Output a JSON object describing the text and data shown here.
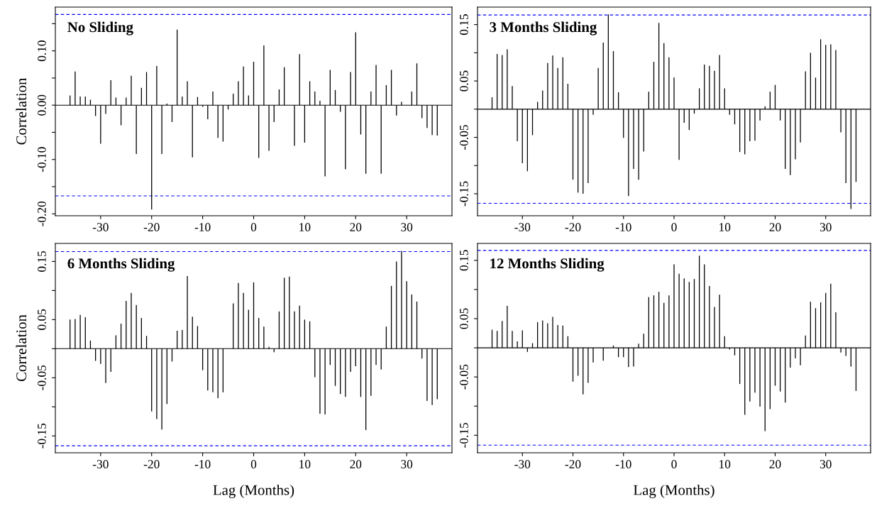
{
  "chart_data": [
    {
      "type": "bar",
      "title": "No Sliding",
      "ylabel": "Correlation",
      "color": "#000000",
      "x": [
        -36,
        -35,
        -34,
        -33,
        -32,
        -31,
        -30,
        -29,
        -28,
        -27,
        -26,
        -25,
        -24,
        -23,
        -22,
        -21,
        -20,
        -19,
        -18,
        -17,
        -16,
        -15,
        -14,
        -13,
        -12,
        -11,
        -10,
        -9,
        -8,
        -7,
        -6,
        -5,
        -4,
        -3,
        -2,
        -1,
        0,
        1,
        2,
        3,
        4,
        5,
        6,
        7,
        8,
        9,
        10,
        11,
        12,
        13,
        14,
        15,
        16,
        17,
        18,
        19,
        20,
        21,
        22,
        23,
        24,
        25,
        26,
        27,
        28,
        29,
        30,
        31,
        32,
        33,
        34,
        35,
        36
      ],
      "values": [
        0.018,
        0.062,
        0.016,
        0.016,
        0.01,
        -0.02,
        -0.071,
        -0.016,
        0.046,
        0.014,
        -0.037,
        0.014,
        0.054,
        -0.09,
        0.032,
        0.061,
        -0.192,
        0.072,
        -0.09,
        0.003,
        -0.031,
        0.139,
        0.016,
        0.044,
        -0.096,
        0.015,
        -0.003,
        -0.026,
        0.025,
        -0.06,
        -0.067,
        -0.008,
        0.021,
        0.044,
        0.071,
        0.018,
        0.08,
        -0.097,
        0.11,
        -0.084,
        -0.031,
        0.029,
        0.07,
        0.0,
        -0.075,
        0.094,
        -0.069,
        0.044,
        0.025,
        0.008,
        -0.131,
        0.065,
        0.028,
        -0.012,
        -0.118,
        0.061,
        0.134,
        -0.054,
        -0.126,
        0.025,
        0.074,
        -0.126,
        0.037,
        0.065,
        -0.019,
        0.006,
        0.0,
        0.025,
        0.077,
        -0.024,
        -0.042,
        -0.055,
        -0.056
      ],
      "xlim": [
        -38.88,
        38.88
      ],
      "xticks": [
        -30,
        -20,
        -10,
        0,
        10,
        20,
        30
      ],
      "ylim": [
        -0.2035,
        0.1805
      ],
      "yticks": [
        {
          "value": 0.15,
          "label": null
        },
        {
          "value": 0.1,
          "label": "0.10"
        },
        {
          "value": 0.05,
          "label": null
        },
        {
          "value": 0.0,
          "label": "0.00"
        },
        {
          "value": -0.05,
          "label": null
        },
        {
          "value": -0.1,
          "label": "-0.10"
        },
        {
          "value": -0.15,
          "label": null
        },
        {
          "value": -0.2,
          "label": "-0.20"
        }
      ],
      "ref_lines": [
        {
          "axis": "y",
          "value": 0.167,
          "color": "#0000ff",
          "line_style": "dashed"
        },
        {
          "axis": "y",
          "value": -0.167,
          "color": "#0000ff",
          "line_style": "dashed"
        },
        {
          "axis": "y",
          "value": 0.0,
          "color": "#000000",
          "line_style": "solid"
        }
      ]
    },
    {
      "type": "bar",
      "title": "3 Months Sliding",
      "color": "#000000",
      "x": [
        -36,
        -35,
        -34,
        -33,
        -32,
        -31,
        -30,
        -29,
        -28,
        -27,
        -26,
        -25,
        -24,
        -23,
        -22,
        -21,
        -20,
        -19,
        -18,
        -17,
        -16,
        -15,
        -14,
        -13,
        -12,
        -11,
        -10,
        -9,
        -8,
        -7,
        -6,
        -5,
        -4,
        -3,
        -2,
        -1,
        0,
        1,
        2,
        3,
        4,
        5,
        6,
        7,
        8,
        9,
        10,
        11,
        12,
        13,
        14,
        15,
        16,
        17,
        18,
        19,
        20,
        21,
        22,
        23,
        24,
        25,
        26,
        27,
        28,
        29,
        30,
        31,
        32,
        33,
        34,
        35,
        36
      ],
      "values": [
        0.021,
        0.098,
        0.096,
        0.106,
        0.041,
        -0.057,
        -0.096,
        -0.11,
        -0.046,
        0.013,
        0.033,
        0.082,
        0.095,
        0.073,
        0.092,
        0.045,
        -0.125,
        -0.148,
        -0.15,
        -0.131,
        -0.01,
        0.073,
        0.118,
        0.168,
        0.103,
        0.03,
        -0.051,
        -0.154,
        -0.106,
        -0.125,
        -0.075,
        0.031,
        0.084,
        0.153,
        0.117,
        0.092,
        0.056,
        -0.09,
        -0.024,
        -0.037,
        -0.008,
        0.037,
        0.079,
        0.077,
        0.068,
        0.096,
        0.037,
        -0.01,
        -0.027,
        -0.076,
        -0.08,
        -0.057,
        -0.056,
        -0.02,
        0.005,
        0.031,
        0.043,
        -0.02,
        -0.106,
        -0.117,
        -0.089,
        -0.059,
        0.067,
        0.1,
        0.056,
        0.124,
        0.114,
        0.115,
        0.105,
        -0.041,
        -0.131,
        -0.177,
        -0.129
      ],
      "xlim": [
        -38.88,
        38.88
      ],
      "xticks": [
        -30,
        -20,
        -10,
        0,
        10,
        20,
        30
      ],
      "ylim": [
        -0.189,
        0.181
      ],
      "yticks": [
        {
          "value": 0.15,
          "label": "0.15"
        },
        {
          "value": 0.1,
          "label": null
        },
        {
          "value": 0.05,
          "label": "0.05"
        },
        {
          "value": 0.0,
          "label": null
        },
        {
          "value": -0.05,
          "label": "-0.05"
        },
        {
          "value": -0.1,
          "label": null
        },
        {
          "value": -0.15,
          "label": "-0.15"
        }
      ],
      "ref_lines": [
        {
          "axis": "y",
          "value": 0.167,
          "color": "#0000ff",
          "line_style": "dashed"
        },
        {
          "axis": "y",
          "value": -0.167,
          "color": "#0000ff",
          "line_style": "dashed"
        },
        {
          "axis": "y",
          "value": 0.0,
          "color": "#000000",
          "line_style": "solid"
        }
      ]
    },
    {
      "type": "bar",
      "title": "6 Months Sliding",
      "ylabel": "Correlation",
      "xlabel": "Lag (Months)",
      "color": "#000000",
      "x": [
        -36,
        -35,
        -34,
        -33,
        -32,
        -31,
        -30,
        -29,
        -28,
        -27,
        -26,
        -25,
        -24,
        -23,
        -22,
        -21,
        -20,
        -19,
        -18,
        -17,
        -16,
        -15,
        -14,
        -13,
        -12,
        -11,
        -10,
        -9,
        -8,
        -7,
        -6,
        -5,
        -4,
        -3,
        -2,
        -1,
        0,
        1,
        2,
        3,
        4,
        5,
        6,
        7,
        8,
        9,
        10,
        11,
        12,
        13,
        14,
        15,
        16,
        17,
        18,
        19,
        20,
        21,
        22,
        23,
        24,
        25,
        26,
        27,
        28,
        29,
        30,
        31,
        32,
        33,
        34,
        35,
        36
      ],
      "values": [
        0.05,
        0.051,
        0.058,
        0.054,
        0.014,
        -0.021,
        -0.026,
        -0.059,
        -0.04,
        0.023,
        0.043,
        0.082,
        0.096,
        0.075,
        0.053,
        0.022,
        -0.108,
        -0.121,
        -0.139,
        -0.095,
        -0.022,
        0.031,
        0.032,
        0.125,
        0.055,
        0.039,
        -0.037,
        -0.072,
        -0.075,
        -0.085,
        -0.075,
        0.0,
        0.078,
        0.113,
        0.096,
        0.067,
        0.114,
        0.053,
        0.038,
        0.003,
        -0.006,
        0.064,
        0.122,
        0.124,
        0.064,
        0.074,
        0.05,
        0.047,
        -0.049,
        -0.112,
        -0.113,
        -0.028,
        -0.064,
        -0.078,
        -0.083,
        -0.04,
        -0.03,
        -0.083,
        -0.14,
        -0.081,
        -0.028,
        -0.036,
        0.038,
        0.108,
        0.15,
        0.168,
        0.116,
        0.093,
        0.081,
        -0.017,
        -0.09,
        -0.097,
        -0.087
      ],
      "xlim": [
        -38.88,
        38.88
      ],
      "xticks": [
        -30,
        -20,
        -10,
        0,
        10,
        20,
        30
      ],
      "ylim": [
        -0.179,
        0.181
      ],
      "yticks": [
        {
          "value": 0.15,
          "label": "0.15"
        },
        {
          "value": 0.1,
          "label": null
        },
        {
          "value": 0.05,
          "label": "0.05"
        },
        {
          "value": 0.0,
          "label": null
        },
        {
          "value": -0.05,
          "label": "-0.05"
        },
        {
          "value": -0.1,
          "label": null
        },
        {
          "value": -0.15,
          "label": "-0.15"
        }
      ],
      "ref_lines": [
        {
          "axis": "y",
          "value": 0.167,
          "color": "#0000ff",
          "line_style": "dashed"
        },
        {
          "axis": "y",
          "value": -0.167,
          "color": "#0000ff",
          "line_style": "dashed"
        },
        {
          "axis": "y",
          "value": 0.0,
          "color": "#000000",
          "line_style": "solid"
        }
      ]
    },
    {
      "type": "bar",
      "title": "12 Months Sliding",
      "xlabel": "Lag (Months)",
      "color": "#000000",
      "x": [
        -36,
        -35,
        -34,
        -33,
        -32,
        -31,
        -30,
        -29,
        -28,
        -27,
        -26,
        -25,
        -24,
        -23,
        -22,
        -21,
        -20,
        -19,
        -18,
        -17,
        -16,
        -15,
        -14,
        -13,
        -12,
        -11,
        -10,
        -9,
        -8,
        -7,
        -6,
        -5,
        -4,
        -3,
        -2,
        -1,
        0,
        1,
        2,
        3,
        4,
        5,
        6,
        7,
        8,
        9,
        10,
        11,
        12,
        13,
        14,
        15,
        16,
        17,
        18,
        19,
        20,
        21,
        22,
        23,
        24,
        25,
        26,
        27,
        28,
        29,
        30,
        31,
        32,
        33,
        34,
        35,
        36
      ],
      "values": [
        0.031,
        0.029,
        0.046,
        0.072,
        0.029,
        0.011,
        0.03,
        -0.007,
        0.008,
        0.044,
        0.047,
        0.042,
        0.053,
        0.039,
        0.038,
        0.02,
        -0.058,
        -0.048,
        -0.08,
        -0.06,
        -0.025,
        0.0,
        -0.022,
        0.0,
        0.004,
        -0.016,
        -0.016,
        -0.033,
        -0.032,
        0.007,
        0.024,
        0.087,
        0.09,
        0.096,
        0.077,
        0.09,
        0.143,
        0.127,
        0.119,
        0.113,
        0.118,
        0.158,
        0.143,
        0.106,
        0.07,
        0.091,
        0.02,
        -0.003,
        -0.013,
        -0.062,
        -0.115,
        -0.092,
        -0.077,
        -0.101,
        -0.143,
        -0.105,
        -0.065,
        -0.075,
        -0.094,
        -0.034,
        -0.018,
        -0.03,
        0.021,
        0.079,
        0.068,
        0.078,
        0.094,
        0.11,
        0.061,
        -0.008,
        -0.014,
        -0.032,
        -0.074
      ],
      "xlim": [
        -38.88,
        38.88
      ],
      "xticks": [
        -30,
        -20,
        -10,
        0,
        10,
        20,
        30
      ],
      "ylim": [
        -0.18,
        0.179
      ],
      "yticks": [
        {
          "value": 0.15,
          "label": "0.15"
        },
        {
          "value": 0.1,
          "label": null
        },
        {
          "value": 0.05,
          "label": "0.05"
        },
        {
          "value": 0.0,
          "label": null
        },
        {
          "value": -0.05,
          "label": "-0.05"
        },
        {
          "value": -0.1,
          "label": null
        },
        {
          "value": -0.15,
          "label": "-0.15"
        }
      ],
      "ref_lines": [
        {
          "axis": "y",
          "value": 0.167,
          "color": "#0000ff",
          "line_style": "dashed"
        },
        {
          "axis": "y",
          "value": -0.167,
          "color": "#0000ff",
          "line_style": "dashed"
        },
        {
          "axis": "y",
          "value": 0.0,
          "color": "#000000",
          "line_style": "solid"
        }
      ]
    }
  ]
}
